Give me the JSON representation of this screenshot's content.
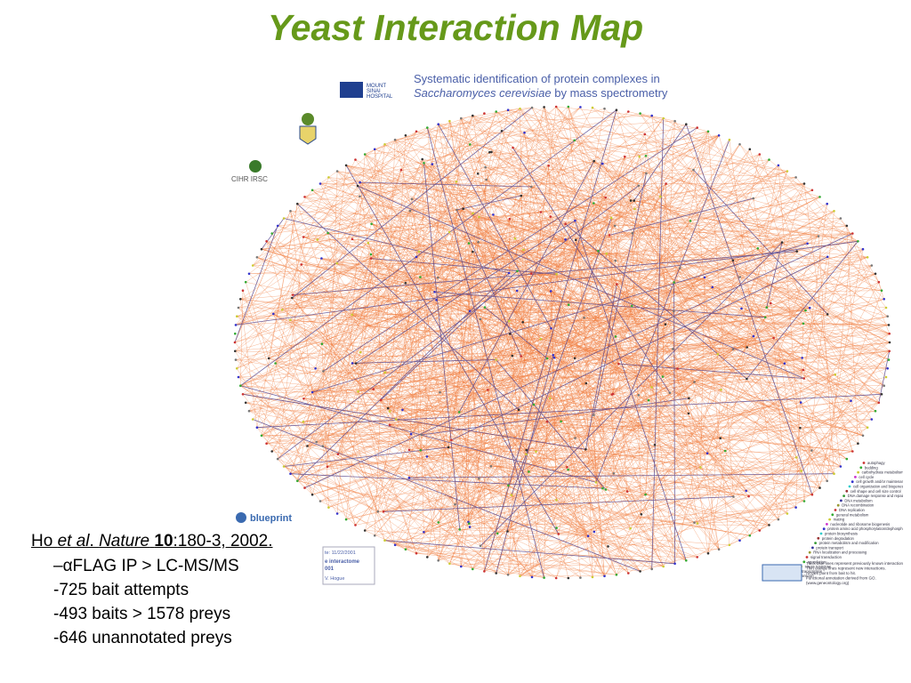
{
  "title": "Yeast Interaction Map",
  "figure": {
    "heading": [
      "Systematic identification of protein complexes in",
      "Saccharomyces cerevisiae",
      "by mass spectrometry"
    ],
    "hospital": [
      "MOUNT",
      "SINAI",
      "HOSPITAL"
    ],
    "cihr": "CIHR IRSC",
    "blueprint": "blueprint",
    "stamp": [
      "te: 11/22/2001",
      "e interactome",
      "001",
      "V. Hogue"
    ],
    "legend": [
      "autophagy",
      "budding",
      "carbohydrate metabolism",
      "cell cycle",
      "cell growth and/or maintenance",
      "cell organization and biogenesis",
      "cell shape and cell size control",
      "DNA damage response and repair",
      "DNA metabolism",
      "DNA recombination",
      "DNA replication",
      "general metabolism",
      "mating",
      "nucleotide and ribosome biogenesis",
      "protein amino acid phosphorylation/dephosphorylation",
      "protein biosynthesis",
      "protein degradation",
      "protein metabolism and modification",
      "protein transport",
      "RNA localization and processing",
      "signal transduction",
      "sporulation",
      "stress response",
      "transcription",
      "transport"
    ],
    "notes": [
      "Thick blue lines represent previously known interactions.",
      "Thin orange lines represent new interactions.",
      "Arrows point from bait to hit.",
      "Functional annotation derived from GO.",
      "(www.geneontology.org)"
    ]
  },
  "citation": {
    "author": "Ho ",
    "etal": "et al",
    "sep": ". ",
    "journal": "Nature",
    "volume": "10",
    "rest": ":180-3, 2002."
  },
  "bullets": [
    "–αFLAG IP > LC-MS/MS",
    "-725 bait attempts",
    "-493 baits > 1578 preys",
    "-646 unannotated preys"
  ]
}
